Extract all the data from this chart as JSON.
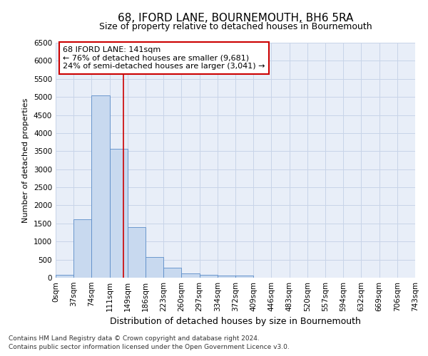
{
  "title": "68, IFORD LANE, BOURNEMOUTH, BH6 5RA",
  "subtitle": "Size of property relative to detached houses in Bournemouth",
  "xlabel": "Distribution of detached houses by size in Bournemouth",
  "ylabel": "Number of detached properties",
  "footnote1": "Contains HM Land Registry data © Crown copyright and database right 2024.",
  "footnote2": "Contains public sector information licensed under the Open Government Licence v3.0.",
  "bin_labels": [
    "0sqm",
    "37sqm",
    "74sqm",
    "111sqm",
    "149sqm",
    "186sqm",
    "223sqm",
    "260sqm",
    "297sqm",
    "334sqm",
    "372sqm",
    "409sqm",
    "446sqm",
    "483sqm",
    "520sqm",
    "557sqm",
    "594sqm",
    "632sqm",
    "669sqm",
    "706sqm",
    "743sqm"
  ],
  "bar_values": [
    75,
    1625,
    5050,
    3575,
    1400,
    575,
    275,
    125,
    75,
    50,
    50,
    0,
    0,
    0,
    0,
    0,
    0,
    0,
    0,
    0
  ],
  "bar_color": "#c8d9ef",
  "bar_edge_color": "#5b8cc8",
  "grid_color": "#c8d4e8",
  "background_color": "#e8eef8",
  "annotation_text": "68 IFORD LANE: 141sqm\n← 76% of detached houses are smaller (9,681)\n24% of semi-detached houses are larger (3,041) →",
  "annotation_box_color": "#ffffff",
  "annotation_border_color": "#cc0000",
  "ylim": [
    0,
    6500
  ],
  "yticks": [
    0,
    500,
    1000,
    1500,
    2000,
    2500,
    3000,
    3500,
    4000,
    4500,
    5000,
    5500,
    6000,
    6500
  ],
  "title_fontsize": 11,
  "subtitle_fontsize": 9,
  "tick_fontsize": 7.5,
  "ylabel_fontsize": 8,
  "xlabel_fontsize": 9,
  "footnote_fontsize": 6.5
}
